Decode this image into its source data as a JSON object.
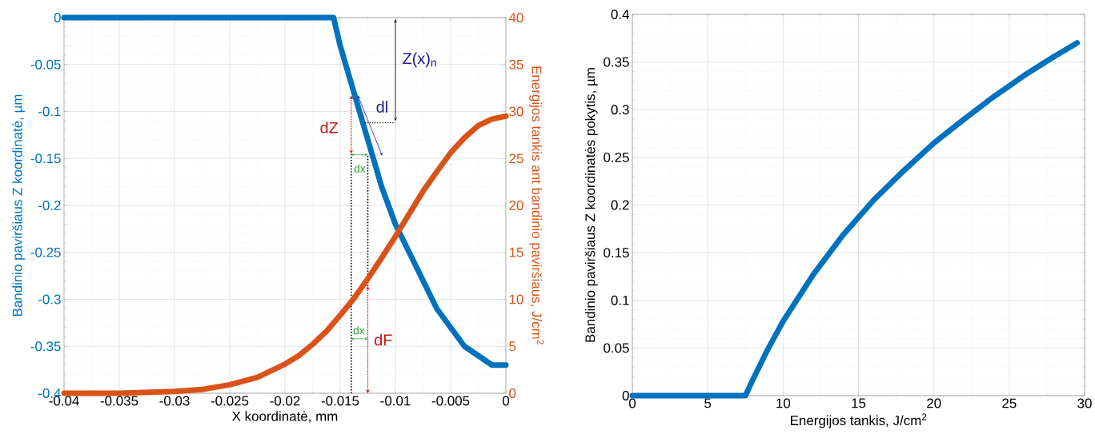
{
  "chart_data": [
    {
      "type": "line",
      "xlabel": "X koordinatė, mm",
      "ylabel": "Bandinio paviršiaus Z koordinatė, µm",
      "y2label": "Energijos tankis ant bandinio paviršiaus, J/cm$^{2}$",
      "xlim": [
        -0.04,
        0
      ],
      "xticks": [
        -0.04,
        -0.035,
        -0.03,
        -0.025,
        -0.02,
        -0.015,
        -0.01,
        -0.005,
        0
      ],
      "ylim": [
        -0.4,
        0
      ],
      "yticks": [
        -0.4,
        -0.35,
        -0.3,
        -0.25,
        -0.2,
        -0.15,
        -0.1,
        -0.05,
        0
      ],
      "y2lim": [
        0,
        40
      ],
      "y2ticks": [
        0,
        5,
        10,
        15,
        20,
        25,
        30,
        35,
        40
      ],
      "grid": true,
      "series": [
        {
          "color": "#0072bd",
          "x": [
            -0.04,
            -0.03,
            -0.02,
            -0.0156,
            -0.015,
            -0.01375,
            -0.0125,
            -0.01125,
            -0.01,
            -0.00875,
            -0.0075,
            -0.00625,
            -0.005,
            -0.00375,
            -0.0025,
            -0.00125,
            0
          ],
          "values": [
            0,
            0,
            0,
            0,
            -0.03,
            -0.08,
            -0.13,
            -0.18,
            -0.22,
            -0.25,
            -0.28,
            -0.31,
            -0.33,
            -0.35,
            -0.36,
            -0.37,
            -0.37
          ]
        },
        {
          "color": "#d95319",
          "axis": "y2",
          "x": [
            -0.04,
            -0.035,
            -0.03,
            -0.0275,
            -0.025,
            -0.0225,
            -0.02,
            -0.01875,
            -0.0175,
            -0.01625,
            -0.015,
            -0.01375,
            -0.0125,
            -0.01125,
            -0.01,
            -0.00875,
            -0.0075,
            -0.00625,
            -0.005,
            -0.00375,
            -0.0025,
            -0.00125,
            0
          ],
          "values": [
            0,
            0,
            0.2,
            0.4,
            0.9,
            1.7,
            3.1,
            4,
            5.2,
            6.6,
            8.3,
            10.1,
            12.2,
            14.4,
            16.7,
            19.1,
            21.5,
            23.6,
            25.6,
            27.2,
            28.5,
            29.2,
            29.5
          ]
        }
      ],
      "annotations": [
        "Z(x)$_{n}$",
        "dl",
        "dZ",
        {
          "text": "dx",
          "x": -0.0125,
          "y": -0.13
        },
        "dx",
        "dF"
      ]
    },
    {
      "type": "line",
      "xlabel": "Energijos tankis, J/cm$^{2}$",
      "ylabel": "Bandinio paviršiaus Z koordinatės pokytis, µm",
      "xlim": [
        0,
        30
      ],
      "xticks": [
        0,
        5,
        10,
        15,
        20,
        25,
        30
      ],
      "ylim": [
        0,
        0.4
      ],
      "yticks": [
        0,
        0.05,
        0.1,
        0.15,
        0.2,
        0.25,
        0.3,
        0.35,
        0.4
      ],
      "grid": true,
      "series": [
        {
          "color": "#0072bd",
          "x": [
            0,
            7.5,
            8,
            9,
            10,
            12,
            14,
            16,
            18,
            20,
            22,
            24,
            26,
            28,
            29.5
          ],
          "values": [
            0,
            0,
            0.017,
            0.049,
            0.078,
            0.127,
            0.169,
            0.205,
            0.236,
            0.265,
            0.29,
            0.314,
            0.336,
            0.356,
            0.37
          ]
        }
      ]
    }
  ]
}
